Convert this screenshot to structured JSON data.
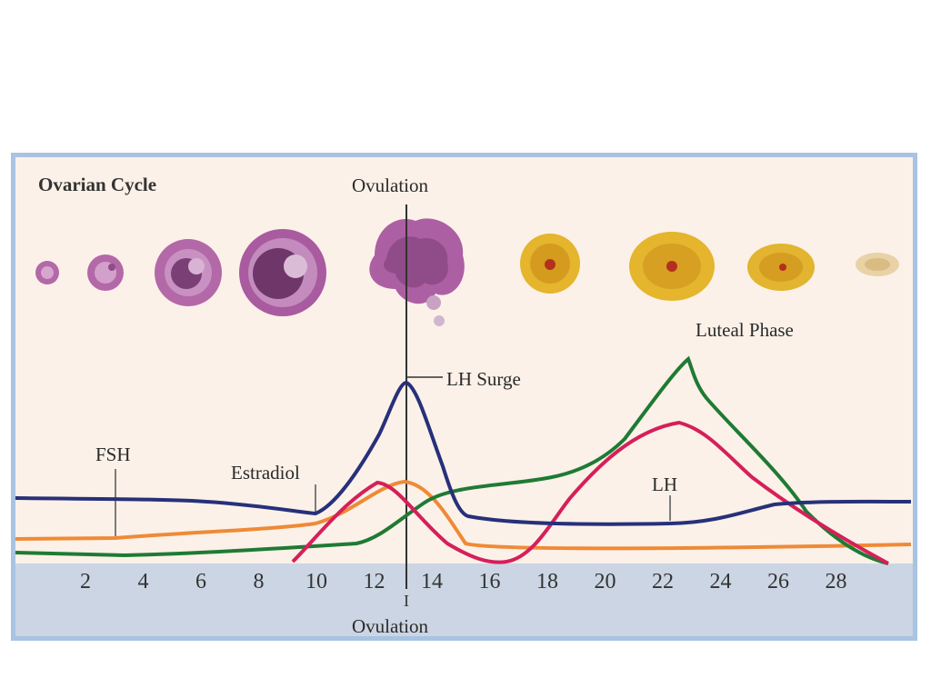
{
  "title": "Ovarian Cycle",
  "labels": {
    "ovulation_top": "Ovulation",
    "luteal_phase": "Luteal Phase",
    "lh_surge": "LH Surge",
    "fsh": "FSH",
    "estradiol": "Estradiol",
    "lh": "LH",
    "ovulation_bottom": "Ovulation",
    "ovulation_tick": "I"
  },
  "x_axis_ticks": [
    "2",
    "4",
    "6",
    "8",
    "10",
    "12",
    "14",
    "16",
    "18",
    "20",
    "22",
    "24",
    "26",
    "28"
  ],
  "stages": [
    {
      "name": "follicle-stage-1"
    },
    {
      "name": "follicle-stage-2"
    },
    {
      "name": "follicle-stage-3"
    },
    {
      "name": "follicle-stage-4"
    },
    {
      "name": "ovulating-follicle"
    },
    {
      "name": "corpus-luteum-1"
    },
    {
      "name": "corpus-luteum-2"
    },
    {
      "name": "corpus-luteum-3"
    },
    {
      "name": "corpus-albicans"
    }
  ],
  "colors": {
    "frame": "#a9c3e2",
    "panel": "#fbf1e8",
    "axis_band": "#cbd5e3",
    "fsh": "#27307a",
    "lh": "#d61f5a",
    "estradiol": "#ef8a36",
    "progesterone": "#1f7a34",
    "follicle": "#b368a8",
    "corpus_luteum": "#e4b52d"
  }
}
